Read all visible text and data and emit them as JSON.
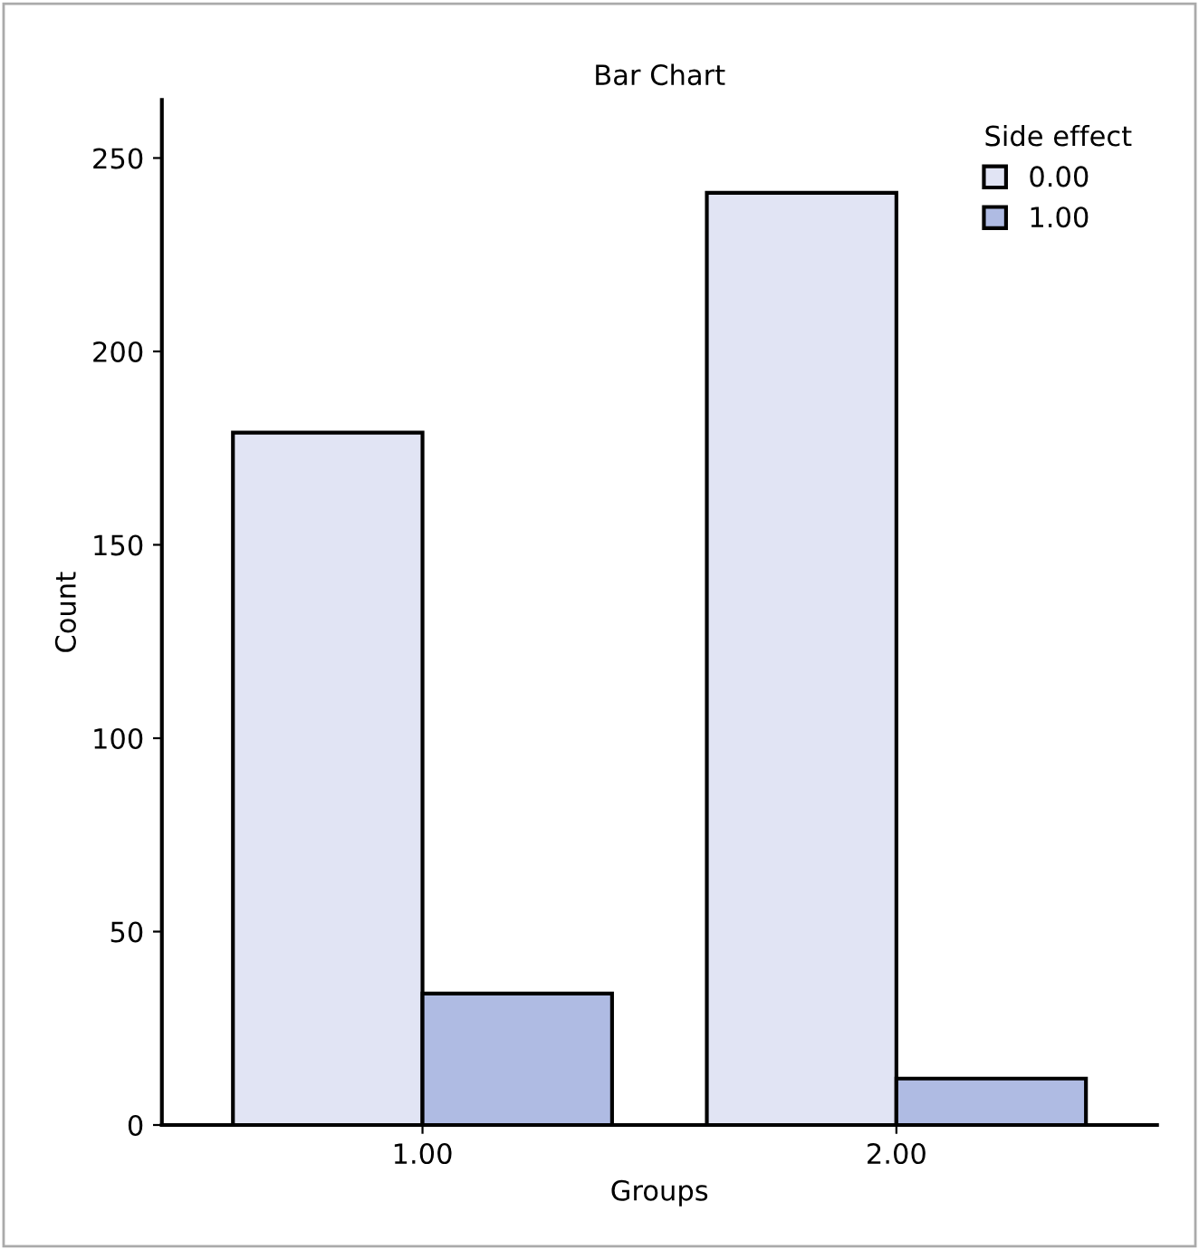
{
  "chart_data": {
    "type": "bar",
    "title": "Bar Chart",
    "xlabel": "Groups",
    "ylabel": "Count",
    "legend_title": "Side effect",
    "categories": [
      "1.00",
      "2.00"
    ],
    "series": [
      {
        "name": "0.00",
        "color": "#e1e4f4",
        "values": [
          179,
          241
        ]
      },
      {
        "name": "1.00",
        "color": "#afbbe3",
        "values": [
          34,
          12
        ]
      }
    ],
    "ylim": [
      0,
      265
    ],
    "yticks": [
      0,
      50,
      100,
      150,
      200,
      250
    ],
    "grid": false,
    "legend": "top right"
  }
}
